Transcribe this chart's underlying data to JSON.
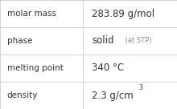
{
  "rows": [
    {
      "label": "molar mass",
      "value": "283.89 g/mol",
      "type": "plain"
    },
    {
      "label": "phase",
      "value": "solid",
      "suffix": " (at STP)",
      "type": "phase"
    },
    {
      "label": "melting point",
      "value": "340 °C",
      "type": "plain"
    },
    {
      "label": "density",
      "value": "2.3 g/cm",
      "superscript": "3",
      "type": "super"
    }
  ],
  "col_split": 0.47,
  "background_color": "#f7f7f7",
  "cell_bg": "#ffffff",
  "border_color": "#cccccc",
  "text_color": "#333333",
  "suffix_color": "#888888",
  "label_fontsize": 7.5,
  "value_fontsize": 8.5,
  "suffix_fontsize": 6.0,
  "super_fontsize": 5.5
}
